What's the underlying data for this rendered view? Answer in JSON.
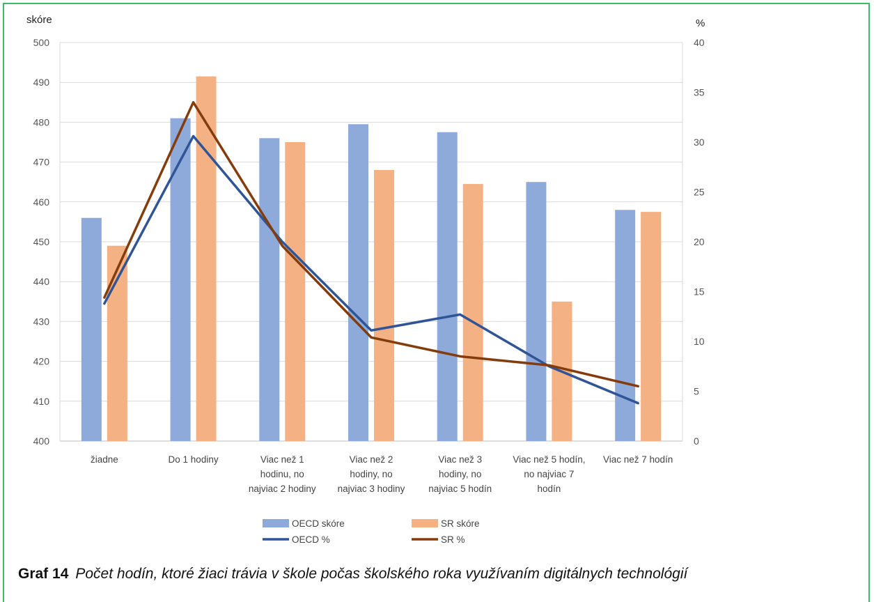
{
  "chart_data": {
    "type": "bar",
    "categories": [
      [
        "žiadne"
      ],
      [
        "Do 1 hodiny"
      ],
      [
        "Viac než 1",
        "hodinu, no",
        "najviac 2 hodiny"
      ],
      [
        "Viac než 2",
        "hodiny, no",
        "najviac 3 hodiny"
      ],
      [
        "Viac než 3",
        "hodiny, no",
        "najviac 5 hodín"
      ],
      [
        "Viac než 5 hodín,",
        "no najviac 7",
        "hodín"
      ],
      [
        "Viac než 7 hodín"
      ]
    ],
    "bar_series": [
      {
        "name": "OECD skóre",
        "color": "#8eaadb",
        "values": [
          456,
          481,
          476,
          479.5,
          477.5,
          465,
          458
        ]
      },
      {
        "name": "SR skóre",
        "color": "#f4b183",
        "values": [
          449,
          491.5,
          475,
          468,
          464.5,
          435,
          457.5
        ]
      }
    ],
    "line_series": [
      {
        "name": "OECD %",
        "color": "#2f5597",
        "values": [
          13.8,
          30.6,
          20,
          11.1,
          12.7,
          7.5,
          3.8
        ]
      },
      {
        "name": "SR %",
        "color": "#843c0c",
        "values": [
          14.4,
          34,
          19.6,
          10.4,
          8.5,
          7.6,
          5.5
        ]
      }
    ],
    "y_left": {
      "label": "skóre",
      "min": 400,
      "max": 500,
      "step": 10
    },
    "y_right": {
      "label": "%",
      "min": 0,
      "max": 40,
      "step": 5
    },
    "legend_position": "bottom"
  },
  "caption": {
    "number": "Graf 14",
    "text": "Počet hodín, ktoré žiaci trávia v škole počas školského roka využívaním digitálnych technológií"
  }
}
